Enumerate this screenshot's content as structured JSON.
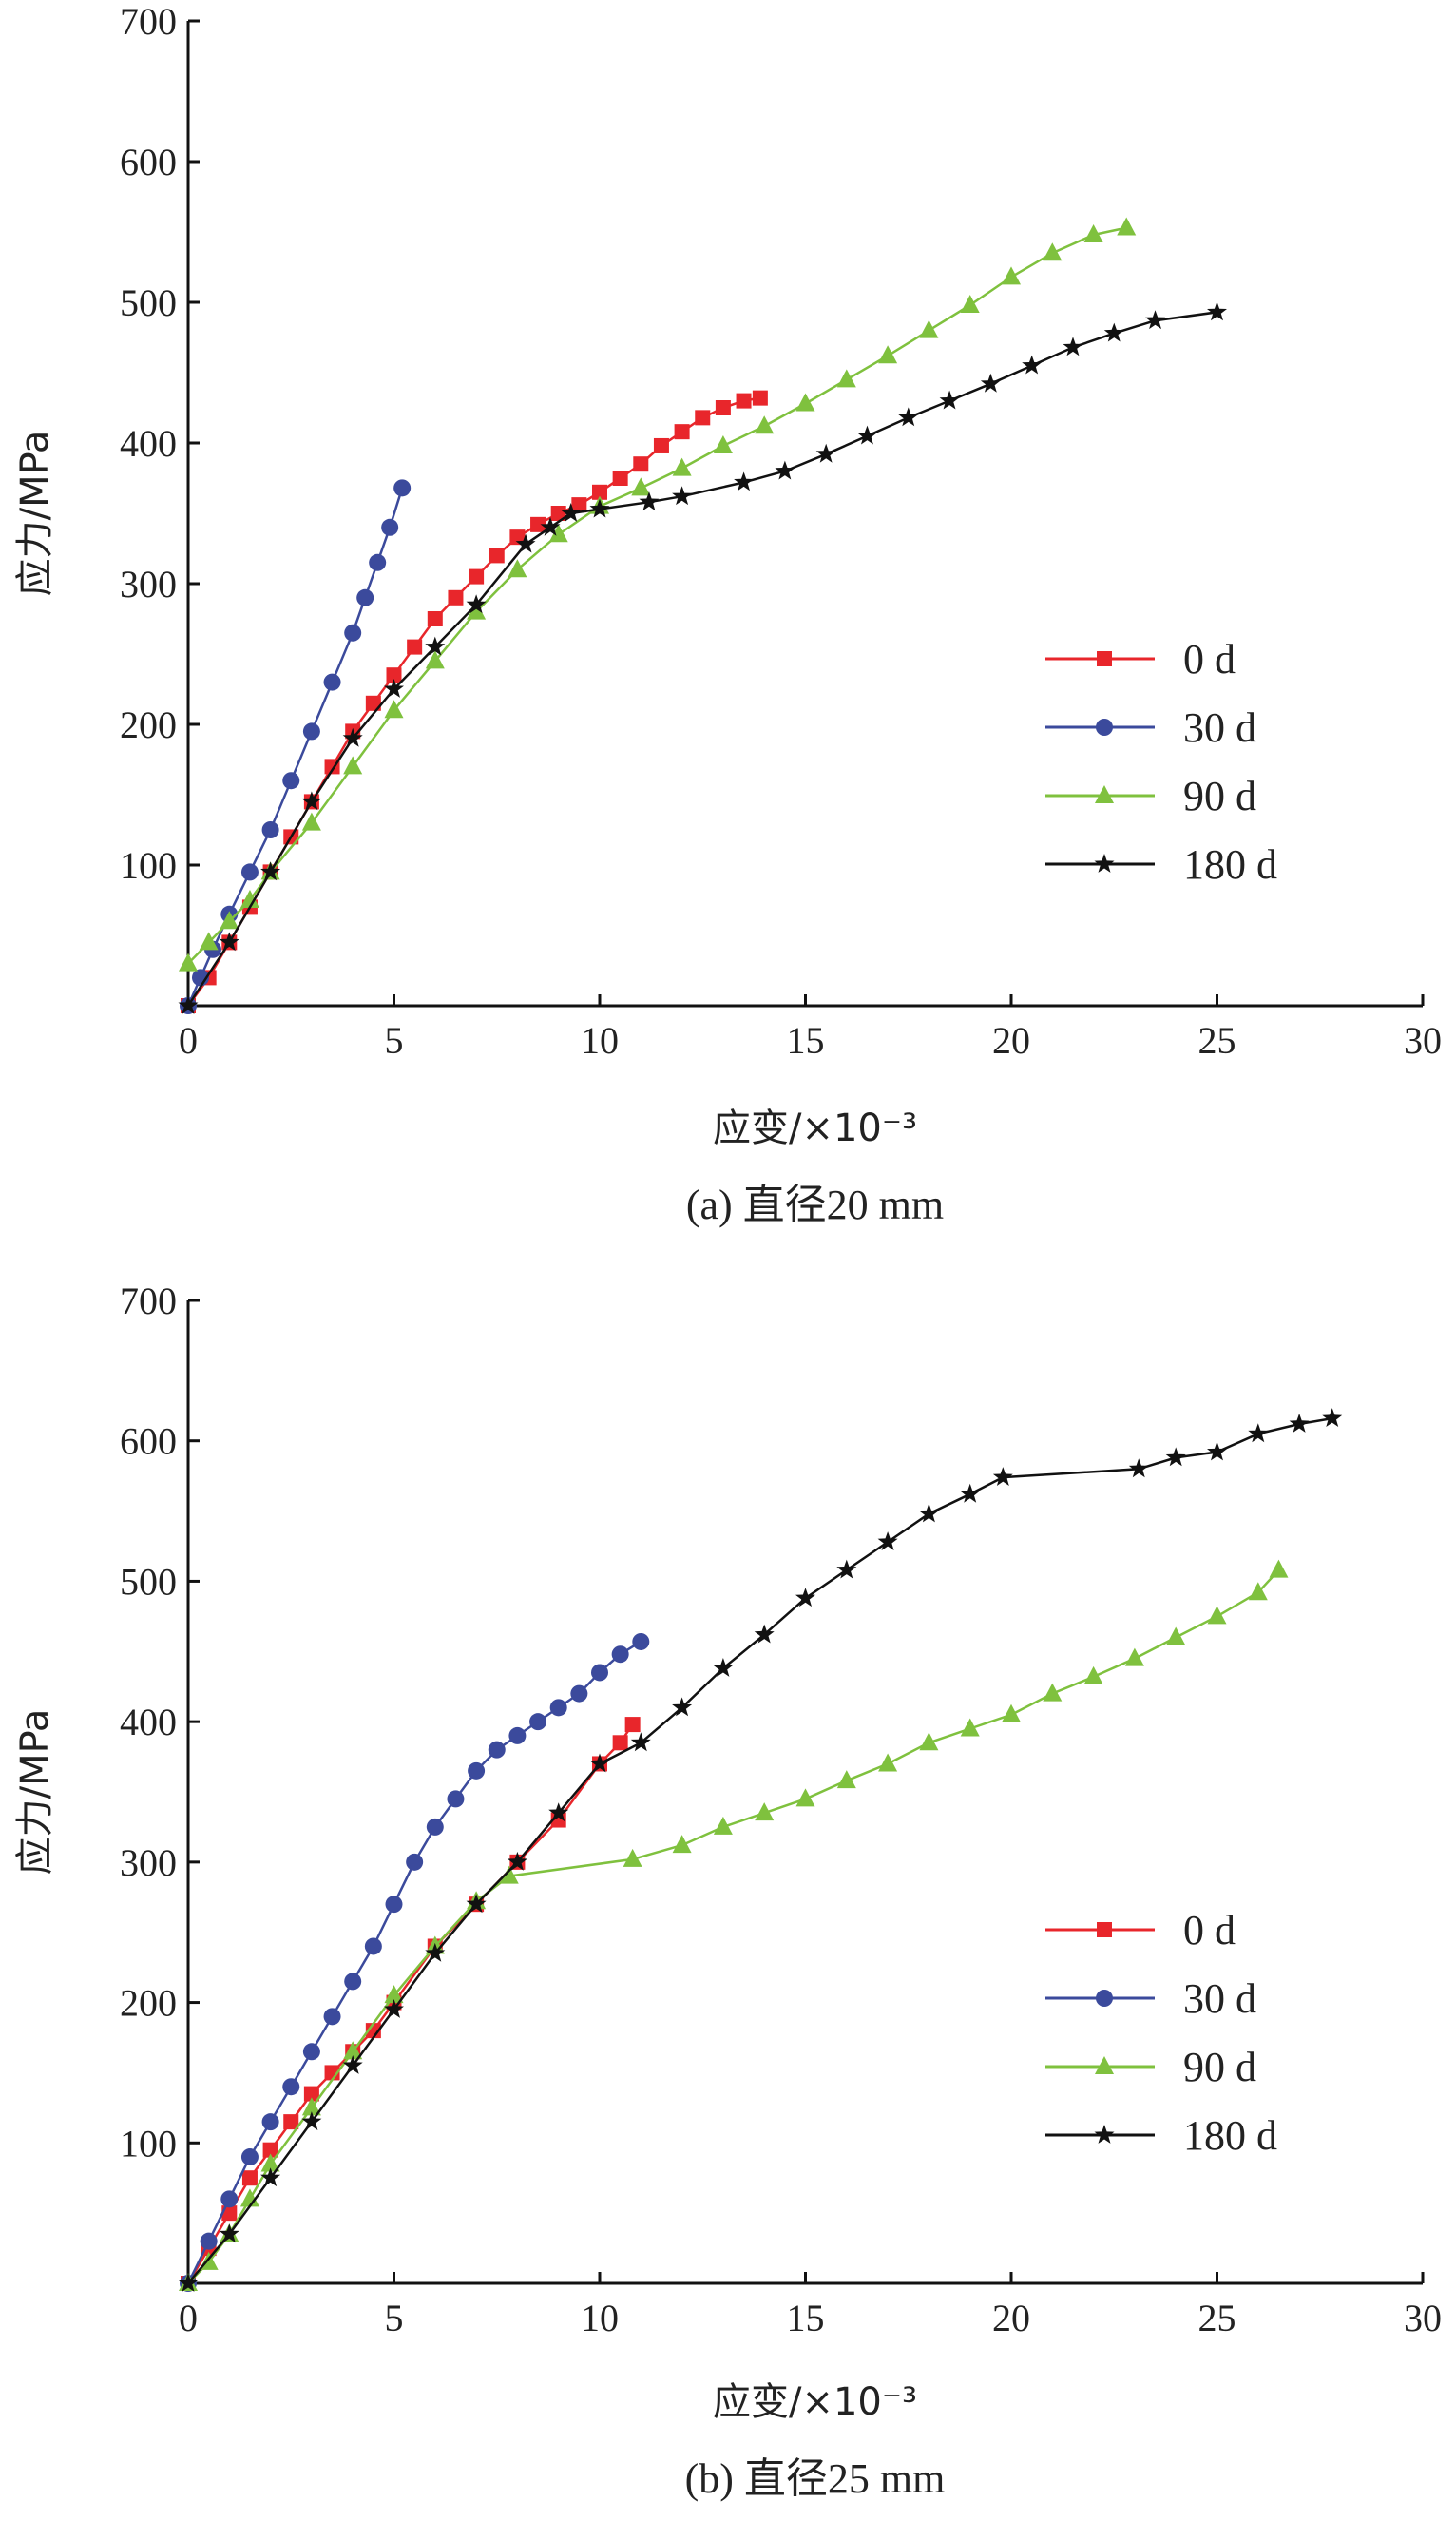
{
  "chart_data": [
    {
      "type": "line",
      "caption": "(a) 直径20 mm",
      "xlabel": "应变/×10⁻³",
      "ylabel": "应力/MPa",
      "xlim": [
        0,
        30
      ],
      "ylim": [
        0,
        700
      ],
      "x_ticks": [
        "0",
        "5",
        "10",
        "15",
        "20",
        "25",
        "30"
      ],
      "y_ticks": [
        "100",
        "200",
        "300",
        "400",
        "500",
        "600",
        "700"
      ],
      "legend_position": "right-middle",
      "series": [
        {
          "name": "0 d",
          "color": "#e8262b",
          "marker": "square",
          "points": [
            [
              0,
              0
            ],
            [
              0.5,
              20
            ],
            [
              1,
              45
            ],
            [
              1.5,
              70
            ],
            [
              2,
              95
            ],
            [
              2.5,
              120
            ],
            [
              3,
              145
            ],
            [
              3.5,
              170
            ],
            [
              4,
              195
            ],
            [
              4.5,
              215
            ],
            [
              5,
              235
            ],
            [
              5.5,
              255
            ],
            [
              6,
              275
            ],
            [
              6.5,
              290
            ],
            [
              7,
              305
            ],
            [
              7.5,
              320
            ],
            [
              8,
              333
            ],
            [
              8.5,
              342
            ],
            [
              9,
              350
            ],
            [
              9.5,
              356
            ],
            [
              10,
              365
            ],
            [
              10.5,
              375
            ],
            [
              11,
              385
            ],
            [
              11.5,
              398
            ],
            [
              12,
              408
            ],
            [
              12.5,
              418
            ],
            [
              13,
              425
            ],
            [
              13.5,
              430
            ],
            [
              13.9,
              432
            ]
          ]
        },
        {
          "name": "30 d",
          "color": "#3b4a9c",
          "marker": "circle",
          "points": [
            [
              0,
              0
            ],
            [
              0.3,
              20
            ],
            [
              0.6,
              40
            ],
            [
              1,
              65
            ],
            [
              1.5,
              95
            ],
            [
              2,
              125
            ],
            [
              2.5,
              160
            ],
            [
              3,
              195
            ],
            [
              3.5,
              230
            ],
            [
              4,
              265
            ],
            [
              4.3,
              290
            ],
            [
              4.6,
              315
            ],
            [
              4.9,
              340
            ],
            [
              5.2,
              368
            ]
          ]
        },
        {
          "name": "90 d",
          "color": "#7fc13e",
          "marker": "triangle",
          "points": [
            [
              0,
              30
            ],
            [
              0.5,
              45
            ],
            [
              1,
              60
            ],
            [
              1.5,
              75
            ],
            [
              2,
              95
            ],
            [
              3,
              130
            ],
            [
              4,
              170
            ],
            [
              5,
              210
            ],
            [
              6,
              245
            ],
            [
              7,
              280
            ],
            [
              8,
              310
            ],
            [
              9,
              335
            ],
            [
              10,
              355
            ],
            [
              11,
              368
            ],
            [
              12,
              382
            ],
            [
              13,
              398
            ],
            [
              14,
              412
            ],
            [
              15,
              428
            ],
            [
              16,
              445
            ],
            [
              17,
              462
            ],
            [
              18,
              480
            ],
            [
              19,
              498
            ],
            [
              20,
              518
            ],
            [
              21,
              535
            ],
            [
              22,
              548
            ],
            [
              22.8,
              553
            ]
          ]
        },
        {
          "name": "180 d",
          "color": "#111111",
          "marker": "star",
          "points": [
            [
              0,
              0
            ],
            [
              1,
              45
            ],
            [
              2,
              95
            ],
            [
              3,
              145
            ],
            [
              4,
              190
            ],
            [
              5,
              225
            ],
            [
              6,
              255
            ],
            [
              7,
              285
            ],
            [
              8.2,
              328
            ],
            [
              8.8,
              340
            ],
            [
              9.3,
              350
            ],
            [
              10,
              353
            ],
            [
              11.2,
              358
            ],
            [
              12,
              362
            ],
            [
              13.5,
              372
            ],
            [
              14.5,
              380
            ],
            [
              15.5,
              392
            ],
            [
              16.5,
              405
            ],
            [
              17.5,
              418
            ],
            [
              18.5,
              430
            ],
            [
              19.5,
              442
            ],
            [
              20.5,
              455
            ],
            [
              21.5,
              468
            ],
            [
              22.5,
              478
            ],
            [
              23.5,
              487
            ],
            [
              25,
              493
            ]
          ]
        }
      ]
    },
    {
      "type": "line",
      "caption": "(b) 直径25 mm",
      "xlabel": "应变/×10⁻³",
      "ylabel": "应力/MPa",
      "xlim": [
        0,
        30
      ],
      "ylim": [
        0,
        700
      ],
      "x_ticks": [
        "0",
        "5",
        "10",
        "15",
        "20",
        "25",
        "30"
      ],
      "y_ticks": [
        "100",
        "200",
        "300",
        "400",
        "500",
        "600",
        "700"
      ],
      "legend_position": "right-middle",
      "series": [
        {
          "name": "0 d",
          "color": "#e8262b",
          "marker": "square",
          "points": [
            [
              0,
              0
            ],
            [
              0.5,
              25
            ],
            [
              1,
              50
            ],
            [
              1.5,
              75
            ],
            [
              2,
              95
            ],
            [
              2.5,
              115
            ],
            [
              3,
              135
            ],
            [
              3.5,
              150
            ],
            [
              4,
              165
            ],
            [
              4.5,
              180
            ],
            [
              5,
              200
            ],
            [
              6,
              240
            ],
            [
              7,
              270
            ],
            [
              8,
              300
            ],
            [
              9,
              330
            ],
            [
              10,
              370
            ],
            [
              10.5,
              385
            ],
            [
              10.8,
              398
            ]
          ]
        },
        {
          "name": "30 d",
          "color": "#3b4a9c",
          "marker": "circle",
          "points": [
            [
              0,
              0
            ],
            [
              0.5,
              30
            ],
            [
              1,
              60
            ],
            [
              1.5,
              90
            ],
            [
              2,
              115
            ],
            [
              2.5,
              140
            ],
            [
              3,
              165
            ],
            [
              3.5,
              190
            ],
            [
              4,
              215
            ],
            [
              4.5,
              240
            ],
            [
              5,
              270
            ],
            [
              5.5,
              300
            ],
            [
              6,
              325
            ],
            [
              6.5,
              345
            ],
            [
              7,
              365
            ],
            [
              7.5,
              380
            ],
            [
              8,
              390
            ],
            [
              8.5,
              400
            ],
            [
              9,
              410
            ],
            [
              9.5,
              420
            ],
            [
              10,
              435
            ],
            [
              10.5,
              448
            ],
            [
              11,
              457
            ]
          ]
        },
        {
          "name": "90 d",
          "color": "#7fc13e",
          "marker": "triangle",
          "points": [
            [
              0,
              0
            ],
            [
              0.5,
              15
            ],
            [
              1,
              35
            ],
            [
              1.5,
              60
            ],
            [
              2,
              85
            ],
            [
              3,
              125
            ],
            [
              4,
              165
            ],
            [
              5,
              205
            ],
            [
              6,
              240
            ],
            [
              7,
              272
            ],
            [
              7.8,
              290
            ],
            [
              10.8,
              302
            ],
            [
              12,
              312
            ],
            [
              13,
              325
            ],
            [
              14,
              335
            ],
            [
              15,
              345
            ],
            [
              16,
              358
            ],
            [
              17,
              370
            ],
            [
              18,
              385
            ],
            [
              19,
              395
            ],
            [
              20,
              405
            ],
            [
              21,
              420
            ],
            [
              22,
              432
            ],
            [
              23,
              445
            ],
            [
              24,
              460
            ],
            [
              25,
              475
            ],
            [
              26,
              492
            ],
            [
              26.5,
              508
            ]
          ]
        },
        {
          "name": "180 d",
          "color": "#111111",
          "marker": "star",
          "points": [
            [
              0,
              0
            ],
            [
              1,
              35
            ],
            [
              2,
              75
            ],
            [
              3,
              115
            ],
            [
              4,
              155
            ],
            [
              5,
              195
            ],
            [
              6,
              235
            ],
            [
              7,
              270
            ],
            [
              8,
              300
            ],
            [
              9,
              335
            ],
            [
              10,
              370
            ],
            [
              11,
              385
            ],
            [
              12,
              410
            ],
            [
              13,
              438
            ],
            [
              14,
              462
            ],
            [
              15,
              488
            ],
            [
              16,
              508
            ],
            [
              17,
              528
            ],
            [
              18,
              548
            ],
            [
              19,
              562
            ],
            [
              19.8,
              574
            ],
            [
              23.1,
              580
            ],
            [
              24,
              588
            ],
            [
              25,
              592
            ],
            [
              26,
              605
            ],
            [
              27,
              612
            ],
            [
              27.8,
              616
            ]
          ]
        }
      ]
    }
  ]
}
